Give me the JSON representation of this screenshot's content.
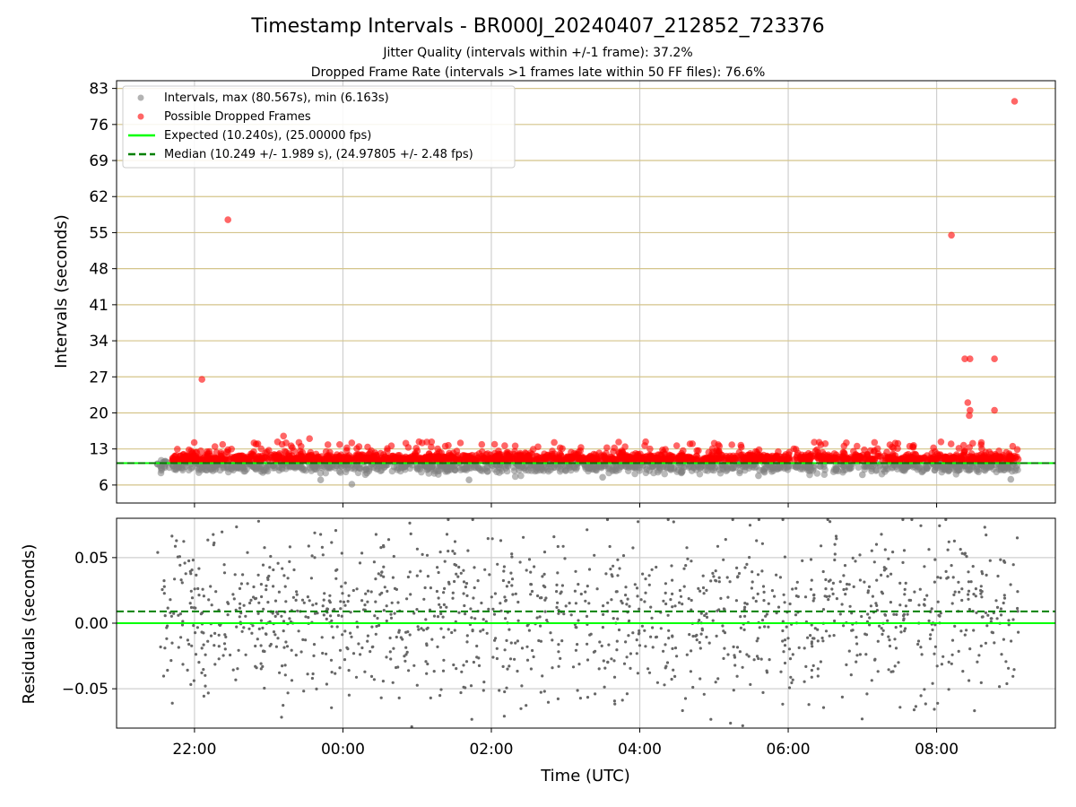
{
  "figure": {
    "title": "Timestamp Intervals - BR000J_20240407_212852_723376",
    "subtitle_1": "Jitter Quality (intervals within +/-1 frame): 37.2%",
    "subtitle_2": "Dropped Frame Rate (intervals >1 frames late within 50 FF files): 76.6%"
  },
  "chart_data": [
    {
      "type": "scatter",
      "title": "Timestamp Intervals - BR000J_20240407_212852_723376",
      "xlabel": "",
      "ylabel": "Intervals (seconds)",
      "x_unit": "hours since 00:00 UTC (negative = previous day)",
      "xlim": [
        -3.05,
        9.6
      ],
      "ylim": [
        2.5,
        84.5
      ],
      "y_ticks": [
        6,
        13,
        20,
        27,
        34,
        41,
        48,
        55,
        62,
        69,
        76,
        83
      ],
      "x_ticks": [
        -2,
        0,
        2,
        4,
        6,
        8
      ],
      "x_tick_labels": [
        "22:00",
        "00:00",
        "02:00",
        "04:00",
        "06:00",
        "08:00"
      ],
      "grid": true,
      "legend_position": "top-left",
      "legend": [
        "Intervals, max (80.567s), min (6.163s)",
        "Possible Dropped Frames",
        "Expected (10.240s), (25.00000 fps)",
        "Median (10.249 +/- 1.989 s), (24.97805 +/- 2.48 fps)"
      ],
      "series": [
        {
          "name": "Intervals, max (80.567s), min (6.163s)",
          "kind": "scatter",
          "color": "#808080",
          "x_range": [
            -2.5,
            9.1
          ],
          "y_approx_range": [
            6.2,
            11.5
          ],
          "points": [
            [
              -2.5,
              10.1
            ],
            [
              -0.3,
              7.0
            ],
            [
              0.12,
              6.16
            ],
            [
              1.7,
              7.0
            ],
            [
              3.5,
              7.5
            ],
            [
              5.6,
              7.8
            ],
            [
              7.0,
              8.0
            ],
            [
              9.0,
              7.1
            ]
          ]
        },
        {
          "name": "Possible Dropped Frames",
          "kind": "scatter",
          "color": "#ff0000",
          "x_range": [
            -2.3,
            9.1
          ],
          "y_approx_range": [
            10.3,
            14.5
          ],
          "outliers": [
            {
              "x": -1.9,
              "y": 26.5
            },
            {
              "x": -1.55,
              "y": 57.5
            },
            {
              "x": -0.8,
              "y": 15.5
            },
            {
              "x": -0.45,
              "y": 15.0
            },
            {
              "x": 8.2,
              "y": 54.5
            },
            {
              "x": 8.38,
              "y": 30.5
            },
            {
              "x": 8.45,
              "y": 30.5
            },
            {
              "x": 8.42,
              "y": 22.0
            },
            {
              "x": 8.45,
              "y": 20.5
            },
            {
              "x": 8.44,
              "y": 19.5
            },
            {
              "x": 8.78,
              "y": 30.5
            },
            {
              "x": 8.78,
              "y": 20.5
            },
            {
              "x": 9.05,
              "y": 80.5
            }
          ]
        },
        {
          "name": "Expected (10.240s), (25.00000 fps)",
          "kind": "hline",
          "y": 10.24,
          "color": "#00ff00"
        },
        {
          "name": "Median (10.249 +/- 1.989 s), (24.97805 +/- 2.48 fps)",
          "kind": "hline_dashed",
          "y": 10.249,
          "color": "#008000"
        }
      ]
    },
    {
      "type": "scatter",
      "title": "",
      "xlabel": "Time (UTC)",
      "ylabel": "Residuals (seconds)",
      "xlim": [
        -3.05,
        9.6
      ],
      "ylim": [
        -0.08,
        0.08
      ],
      "y_ticks": [
        0.05,
        0.0,
        -0.05
      ],
      "y_tick_labels": [
        "0.05",
        "0.00",
        "−0.05"
      ],
      "x_ticks": [
        -2,
        0,
        2,
        4,
        6,
        8
      ],
      "x_tick_labels": [
        "22:00",
        "00:00",
        "02:00",
        "04:00",
        "06:00",
        "08:00"
      ],
      "grid": true,
      "series": [
        {
          "name": "",
          "kind": "scatter",
          "color": "#666666",
          "x_range": [
            -2.5,
            9.1
          ],
          "y_approx_range": [
            -0.08,
            0.08
          ]
        },
        {
          "name": "",
          "kind": "hline",
          "y": 0.0,
          "color": "#00ff00"
        },
        {
          "name": "",
          "kind": "hline_dashed",
          "y": 0.009,
          "color": "#008000"
        }
      ]
    }
  ]
}
